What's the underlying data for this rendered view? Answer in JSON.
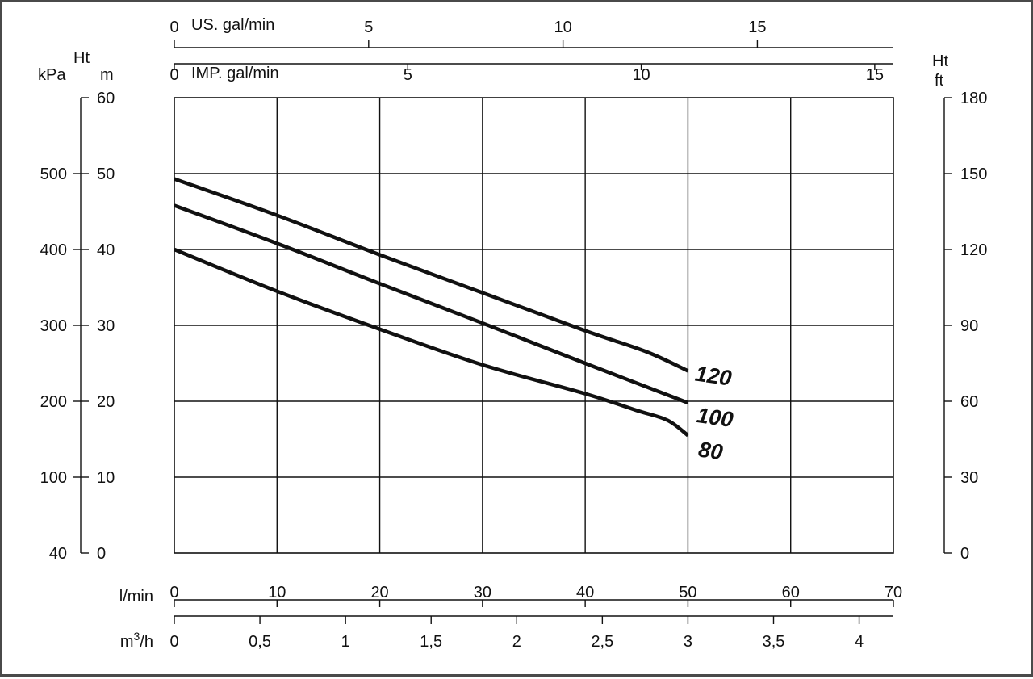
{
  "chart_data": {
    "type": "line",
    "x_primary": {
      "label": "l/min",
      "range": [
        0,
        70
      ],
      "ticks": [
        0,
        10,
        20,
        30,
        40,
        50,
        60,
        70
      ]
    },
    "x_secondary": {
      "label": "m3/h",
      "label_main": "m",
      "label_sup": "3",
      "label_tail": "/h",
      "range": [
        0,
        4.2
      ],
      "ticks": [
        0,
        0.5,
        1,
        1.5,
        2,
        2.5,
        3,
        3.5,
        4
      ],
      "tick_labels": [
        "0",
        "0,5",
        "1",
        "1,5",
        "2",
        "2,5",
        "3",
        "3,5",
        "4"
      ]
    },
    "x_top_us": {
      "label": "US. gal/min",
      "range": [
        0,
        18.5
      ],
      "ticks": [
        0,
        5,
        10,
        15
      ],
      "tick_labels": [
        "0",
        "5",
        "10",
        "15"
      ]
    },
    "x_top_imp": {
      "label": "IMP. gal/min",
      "range": [
        0,
        15.4
      ],
      "ticks": [
        0,
        5,
        10,
        15
      ],
      "tick_labels": [
        "0",
        "5",
        "10",
        "15"
      ]
    },
    "y_left_m": {
      "label": "m",
      "range": [
        0,
        60
      ],
      "ticks": [
        0,
        10,
        20,
        30,
        40,
        50,
        60
      ]
    },
    "y_left_kpa": {
      "label": "kPa",
      "range": [
        0,
        600
      ],
      "ticks": [
        100,
        200,
        300,
        400,
        500
      ],
      "bottom_label": "40"
    },
    "y_right_ft": {
      "label": "ft",
      "range": [
        0,
        180
      ],
      "ticks": [
        0,
        30,
        60,
        90,
        120,
        150,
        180
      ]
    },
    "ht_label": "Ht",
    "grid": true,
    "series": [
      {
        "name": "120",
        "x": [
          0,
          10,
          20,
          30,
          40,
          46,
          50
        ],
        "y": [
          49.3,
          44.5,
          39.3,
          34.3,
          29.3,
          26.5,
          24.0
        ]
      },
      {
        "name": "100",
        "x": [
          0,
          10,
          20,
          30,
          40,
          50
        ],
        "y": [
          45.8,
          40.8,
          35.5,
          30.3,
          25.0,
          19.8
        ]
      },
      {
        "name": "80",
        "x": [
          0,
          10,
          20,
          30,
          40,
          45,
          48,
          50
        ],
        "y": [
          40.0,
          34.5,
          29.5,
          24.8,
          21.0,
          18.8,
          17.5,
          15.5
        ]
      }
    ]
  }
}
